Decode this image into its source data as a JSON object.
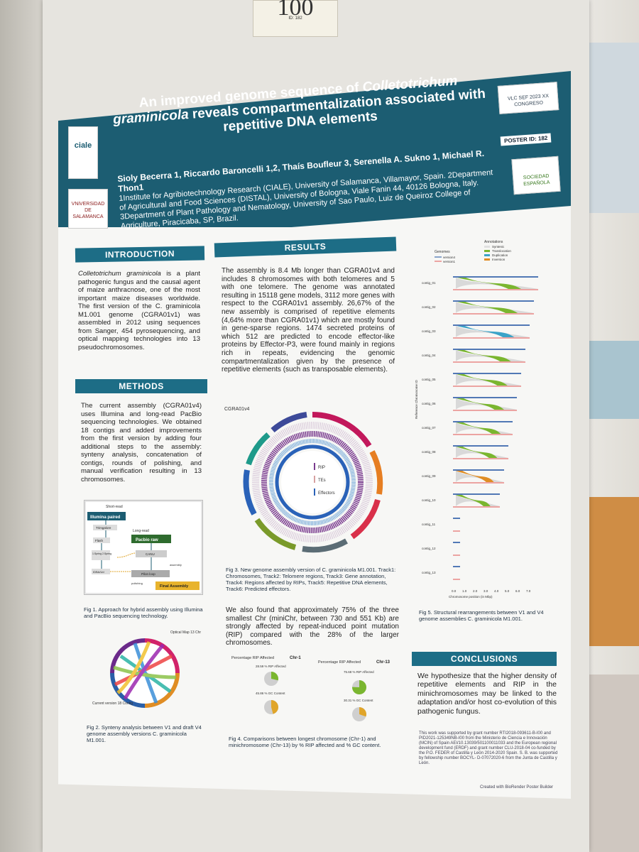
{
  "badge": {
    "number": "100",
    "sub": "ID: 182"
  },
  "header": {
    "title_line1": "An improved genome sequence of",
    "title_italic1": "Colletotrichum",
    "title_italic2": "graminicola",
    "title_line2": "reveals compartmentalization associated with repetitive DNA elements",
    "poster_id": "POSTER ID: 182",
    "authors": "Sioly Becerra 1, Riccardo Baroncelli 1,2, Thaís Boufleur 3, Serenella A. Sukno 1, Michael R. Thon1",
    "affiliations": "1Institute for Agribiotechnology Research (CIALE), University of Salamanca, Villamayor, Spain. 2Department of Agricultural and Food Sciences (DISTAL), University of Bologna, Viale Fanin 44, 40126 Bologna, Italy. 3Department of Plant Pathology and Nematology, University of Sao Paulo, Luiz de Queiroz College of Agriculture, Piracicaba, SP, Brazil.",
    "logo_left1": "ciale",
    "logo_left2": "VNiVERSiDAD DE SALAMANCA",
    "logo_right1": "VLC SEF 2023 XX CONGRESO",
    "logo_right2": "SOCIEDAD ESPAÑOLA"
  },
  "intro": {
    "heading": "INTRODUCTION",
    "text_italic": "Colletotrichum graminicola",
    "text": "is a plant pathogenic fungus and the causal agent of maize anthracnose, one of the most important maize diseases worldwide. The first version of the C. graminicola M1.001 genome (CGRA01v1) was assembled in 2012 using sequences from Sanger, 454 pyrosequencing, and optical mapping technologies into 13 pseudochromosomes."
  },
  "methods": {
    "heading": "METHODS",
    "text": "The current assembly (CGRA01v4) uses Illumina and long-read PacBio sequencing technologies. We obtained 18 contigs and added improvements from the first version by adding four additional steps to the assembly: synteny analysis, concatenation of contigs, rounds of polishing, and manual verification resulting in 13 chromosomes."
  },
  "fig1": {
    "short_read": "Short-read",
    "illumina": "Illumina paired",
    "long_read": "Long-read",
    "pacbio": "Pacbio raw",
    "trim": "Trimgalore",
    "flash": "Flash",
    "assembly_a": "1.Spring 2.Spring",
    "spades": "IDBA/Ud",
    "canu": "CANU",
    "assembly": "assembly",
    "pilon": "Pilon loop",
    "polishing": "polishing",
    "final": "Final Assembly",
    "caption": "Fig 1. Approach for hybrid assembly using Illumina and PacBio sequencing technology."
  },
  "fig2": {
    "optical": "Optical Map 13 Chr",
    "current": "Current version 18 Contig",
    "caption": "Fig 2. Synteny analysis between V1 and draft V4 genome assembly versions C. graminicola M1.001."
  },
  "results": {
    "heading": "RESULTS",
    "text": "The assembly is 8.4 Mb longer than CGRA01v4 and includes 8 chromosomes with both telomeres and 5 with one telomere. The genome was annotated resulting in 15118 gene models, 3112 more genes with respect to the CGRA01v1 assembly. 26,67% of the new assembly is comprised of repetitive elements (4,64% more than CGRA01v1) which are mostly found in gene-sparse regions. 1474 secreted proteins of which 512 are predicted to encode effector-like proteins by Effector-P3, were found mainly in regions rich in repeats, evidencing the genomic compartmentalization given by the presence of repetitive elements (such as transposable elements).",
    "text2": "We also found that approximately 75% of the three smallest Chr (miniChr, between 730 and 551 Kb) are strongly affected by repeat-induced point mutation (RIP) compared with the 28% of the larger chromosomes."
  },
  "fig3": {
    "label": "CGRA01v4",
    "legend": [
      "RIP",
      "TEs",
      "Effectors"
    ],
    "caption": "Fig 3. New genome assembly version of C. graminicola M1.001. Track1: Chromosomes, Track2: Telomere regions, Track3: Gene annotation, Track4: Regions affected by RIPs, Track5: Repetitive DNA elements, Track6: Predicted effectors."
  },
  "fig4": {
    "title1": "Percentage RIP Affected",
    "chr1": "Chr-1",
    "title2": "Percentage RIP Affected",
    "chr13": "Chr-13",
    "rip1": "28.59 % RIP Affected",
    "gc1": "45.86 % GC Content",
    "rip13": "75.68 % RIP Affected",
    "gc13": "30.31 % GC Content",
    "rip1_value": 28.59,
    "gc1_value": 45.86,
    "rip13_value": 75.68,
    "gc13_value": 30.31,
    "caption": "Fig 4. Comparisons between longest chromosome (Chr-1) and minichromosome (Chr-13) by % RIP affected and % GC content."
  },
  "fig5": {
    "legend_genomes": "Genomes",
    "legend_v4": "version4",
    "legend_v1": "version1",
    "legend_ann": "Annotations",
    "legend_items": [
      "Syntenic",
      "Translocation",
      "Duplication",
      "Inversion"
    ],
    "contigs": [
      "contig_01",
      "contig_02",
      "contig_03",
      "contig_04",
      "contig_05",
      "contig_06",
      "contig_07",
      "contig_08",
      "contig_09",
      "contig_10",
      "contig_11",
      "contig_12",
      "contig_13"
    ],
    "xticks": [
      "0.0",
      "1.0",
      "2.0",
      "3.0",
      "4.0",
      "5.0",
      "6.0",
      "7.0"
    ],
    "xlabel": "Chromosome position (in Mbp)",
    "ylabel": "Reference Chromosome ID",
    "caption": "Fig 5. Structural rearrangements between V1 and V4 genome assemblies C. graminicola M1.001."
  },
  "conclusions": {
    "heading": "CONCLUSIONS",
    "text": "We hypothesize that the higher density of repetitive elements and RIP in the minichromosomes may be linked to the adaptation and/or host co-evolution of this pathogenic fungus."
  },
  "funding": "This work was supported by grant number RTI2018-093611-B-I00 and PID2021-125349NB-I00 from the Ministerio de Ciencia e Innovación (MCIN) of Spain AEI/10.13039/501100011033 and the European regional development fund (ERDF) and grant number CLU-2018-04 co-funded by the P.O. FEDER of Castilla y León 2014-2020 Spain. S. B. was supported by fellowship number BOCYL- D-07072020-6 from the Junta de Castilla y León.",
  "created": "Created with BioRender Poster Builder",
  "colors": {
    "header": "#1c5d72",
    "section": "#1d6d86",
    "green": "#7ab62f",
    "gold": "#e0a52a"
  }
}
